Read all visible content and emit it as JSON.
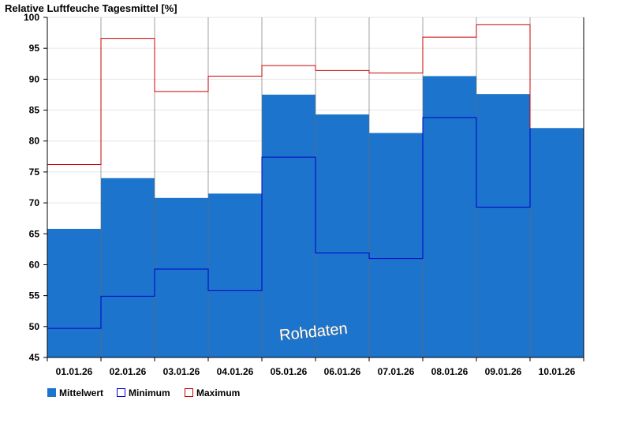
{
  "chart_data": {
    "type": "bar",
    "title": "Relative Luftfeuche Tagesmittel [%]",
    "categories": [
      "01.01.26",
      "02.01.26",
      "03.01.26",
      "04.01.26",
      "05.01.26",
      "06.01.26",
      "07.01.26",
      "08.01.26",
      "09.01.26",
      "10.01.26"
    ],
    "ylim": [
      45,
      100
    ],
    "yticks": [
      45,
      50,
      55,
      60,
      65,
      70,
      75,
      80,
      85,
      90,
      95,
      100
    ],
    "grid": true,
    "legend_position": "bottom-left",
    "series": [
      {
        "name": "Mittelwert",
        "values": [
          65.8,
          74.0,
          70.8,
          71.5,
          87.5,
          84.3,
          81.3,
          90.5,
          87.6,
          82.1
        ],
        "color": "#1c74cc"
      },
      {
        "name": "Minimum",
        "values": [
          49.7,
          54.9,
          59.3,
          55.8,
          77.4,
          61.9,
          61.0,
          83.8,
          69.3,
          null
        ],
        "color": "#0000cc"
      },
      {
        "name": "Maximum",
        "values": [
          76.2,
          96.6,
          88.0,
          90.5,
          92.2,
          91.4,
          91.0,
          96.8,
          98.8,
          null
        ],
        "color": "#cc0000"
      }
    ],
    "annotation": "Rohdaten"
  }
}
